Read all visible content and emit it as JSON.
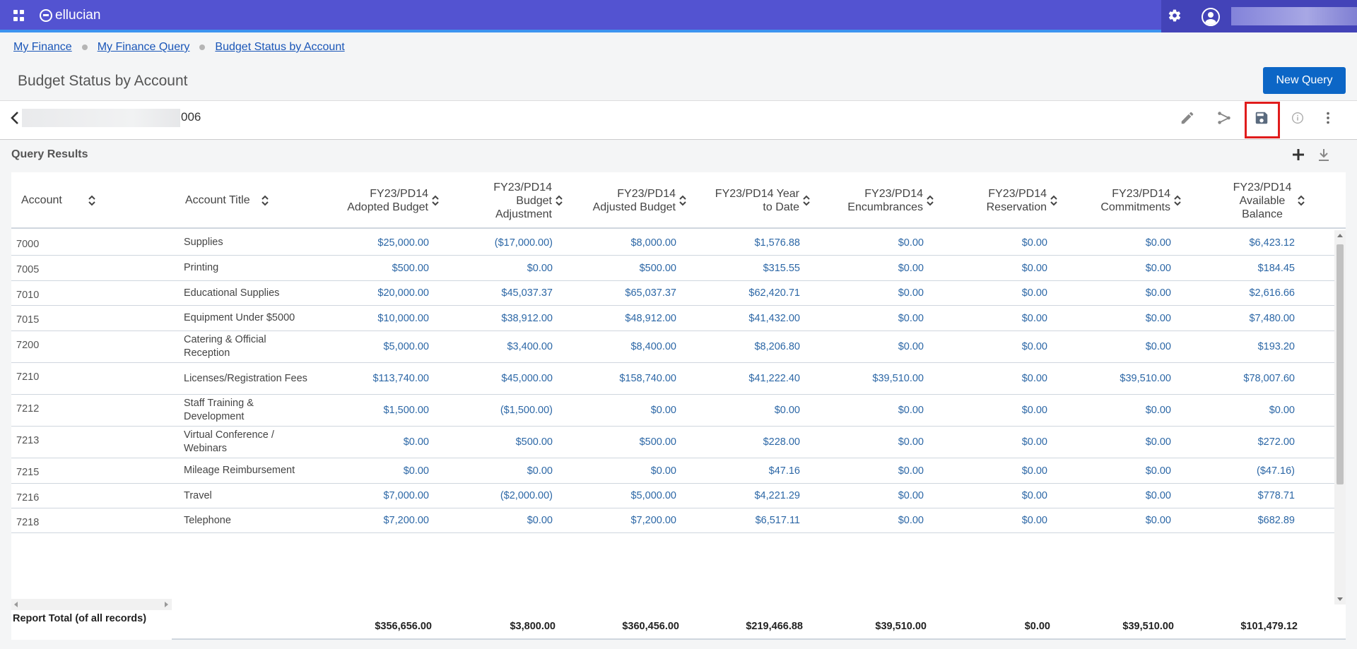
{
  "app": {
    "brand": "ellucian",
    "accent": "#5353d1",
    "primary_button": "#0c66c6",
    "link": "#1a56b8",
    "highlight": "#e01c1c"
  },
  "breadcrumb": [
    "My Finance",
    "My Finance Query",
    "Budget Status by Account"
  ],
  "page": {
    "title": "Budget Status by Account",
    "new_query_label": "New Query"
  },
  "query": {
    "name_tail": "006"
  },
  "results": {
    "heading": "Query Results"
  },
  "table": {
    "columns": [
      {
        "label": "Account"
      },
      {
        "label": "Account Title"
      },
      {
        "label": "FY23/PD14 Adopted Budget"
      },
      {
        "label": "FY23/PD14 Budget Adjustment"
      },
      {
        "label": "FY23/PD14 Adjusted Budget"
      },
      {
        "label": "FY23/PD14 Year to Date"
      },
      {
        "label": "FY23/PD14 Encumbrances"
      },
      {
        "label": "FY23/PD14 Reservation"
      },
      {
        "label": "FY23/PD14 Commitments"
      },
      {
        "label": "FY23/PD14 Available Balance"
      }
    ],
    "rows": [
      {
        "account": "7000",
        "title": "Supplies",
        "values": [
          "$25,000.00",
          "($17,000.00)",
          "$8,000.00",
          "$1,576.88",
          "$0.00",
          "$0.00",
          "$0.00",
          "$6,423.12"
        ]
      },
      {
        "account": "7005",
        "title": "Printing",
        "values": [
          "$500.00",
          "$0.00",
          "$500.00",
          "$315.55",
          "$0.00",
          "$0.00",
          "$0.00",
          "$184.45"
        ]
      },
      {
        "account": "7010",
        "title": "Educational Supplies",
        "values": [
          "$20,000.00",
          "$45,037.37",
          "$65,037.37",
          "$62,420.71",
          "$0.00",
          "$0.00",
          "$0.00",
          "$2,616.66"
        ]
      },
      {
        "account": "7015",
        "title": "Equipment Under $5000",
        "values": [
          "$10,000.00",
          "$38,912.00",
          "$48,912.00",
          "$41,432.00",
          "$0.00",
          "$0.00",
          "$0.00",
          "$7,480.00"
        ]
      },
      {
        "account": "7200",
        "title": "Catering & Official Reception",
        "values": [
          "$5,000.00",
          "$3,400.00",
          "$8,400.00",
          "$8,206.80",
          "$0.00",
          "$0.00",
          "$0.00",
          "$193.20"
        ]
      },
      {
        "account": "7210",
        "title": "Licenses/Registration Fees",
        "values": [
          "$113,740.00",
          "$45,000.00",
          "$158,740.00",
          "$41,222.40",
          "$39,510.00",
          "$0.00",
          "$39,510.00",
          "$78,007.60"
        ]
      },
      {
        "account": "7212",
        "title": "Staff Training & Development",
        "values": [
          "$1,500.00",
          "($1,500.00)",
          "$0.00",
          "$0.00",
          "$0.00",
          "$0.00",
          "$0.00",
          "$0.00"
        ]
      },
      {
        "account": "7213",
        "title": "Virtual Conference / Webinars",
        "values": [
          "$0.00",
          "$500.00",
          "$500.00",
          "$228.00",
          "$0.00",
          "$0.00",
          "$0.00",
          "$272.00"
        ]
      },
      {
        "account": "7215",
        "title": "Mileage Reimbursement",
        "values": [
          "$0.00",
          "$0.00",
          "$0.00",
          "$47.16",
          "$0.00",
          "$0.00",
          "$0.00",
          "($47.16)"
        ]
      },
      {
        "account": "7216",
        "title": "Travel",
        "values": [
          "$7,000.00",
          "($2,000.00)",
          "$5,000.00",
          "$4,221.29",
          "$0.00",
          "$0.00",
          "$0.00",
          "$778.71"
        ]
      },
      {
        "account": "7218",
        "title": "Telephone",
        "values": [
          "$7,200.00",
          "$0.00",
          "$7,200.00",
          "$6,517.11",
          "$0.00",
          "$0.00",
          "$0.00",
          "$682.89"
        ]
      }
    ],
    "total_label": "Report Total (of all records)",
    "totals": [
      "$356,656.00",
      "$3,800.00",
      "$360,456.00",
      "$219,466.88",
      "$39,510.00",
      "$0.00",
      "$39,510.00",
      "$101,479.12"
    ]
  }
}
